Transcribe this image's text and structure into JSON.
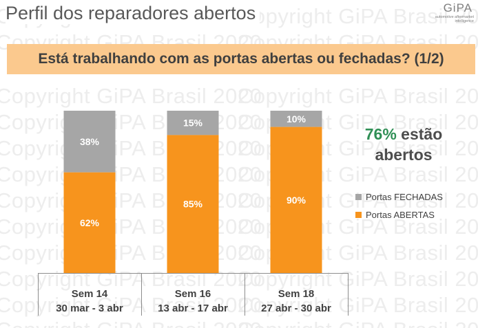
{
  "header": {
    "title": "Perfil dos reparadores abertos",
    "logo_text": "GiPA",
    "logo_tagline": "automotive aftermarket intelligence"
  },
  "banner": {
    "question": "Está trabalhando com as portas abertas ou fechadas? (1/2)"
  },
  "watermark_text": "Copyright GiPA Brasil 2020",
  "callout": {
    "highlight": "76%",
    "text_line1": "estão",
    "text_line2": "abertos"
  },
  "colors": {
    "abertas": "#f7941d",
    "fechadas": "#a6a6a6",
    "banner_bg": "#fbc98e",
    "highlight": "#2f8f55"
  },
  "chart_data": {
    "type": "bar",
    "stacked": true,
    "percent_stacked": true,
    "categories": [
      "Sem 14",
      "Sem 16",
      "Sem 18"
    ],
    "category_sublabels": [
      "30 mar - 3 abr",
      "13 abr - 17 abr",
      "27 abr - 30 abr"
    ],
    "series": [
      {
        "name": "Portas ABERTAS",
        "values": [
          62,
          85,
          90
        ],
        "labels": [
          "62%",
          "85%",
          "90%"
        ]
      },
      {
        "name": "Portas FECHADAS",
        "values": [
          38,
          15,
          10
        ],
        "labels": [
          "38%",
          "15%",
          "10%"
        ]
      }
    ],
    "ylim": [
      0,
      100
    ],
    "grid": false,
    "legend_position": "right",
    "legend": [
      "Portas FECHADAS",
      "Portas ABERTAS"
    ]
  }
}
